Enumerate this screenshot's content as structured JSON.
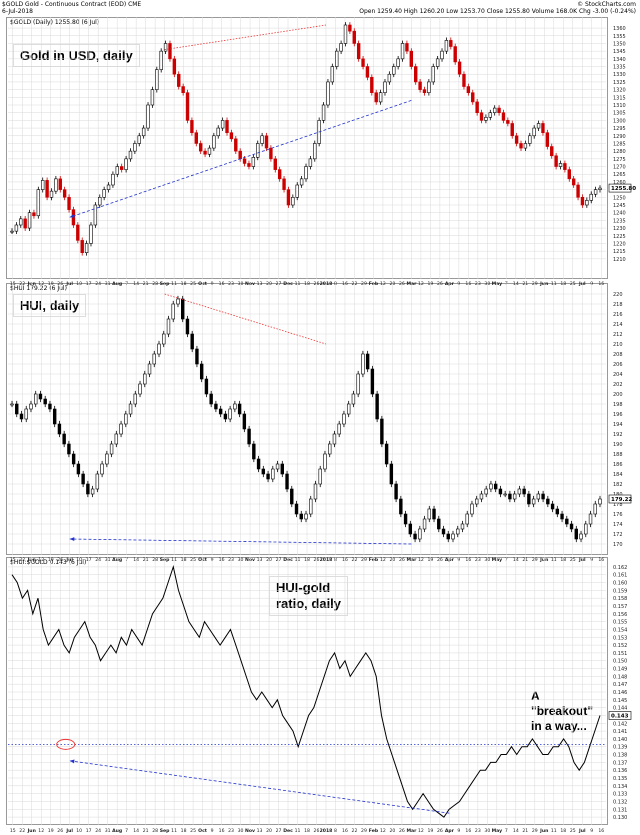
{
  "header": {
    "symbol_line": "$GOLD Gold - Continuous Contract (EOD) CME",
    "date_line": "6-Jul-2018",
    "right_line1": "© StockCharts.com",
    "right_line2": "Open 1259.40  High 1260.20  Low 1253.70  Close 1255.80  Volume 168.0K  Chg -3.00 (-0.24%)"
  },
  "panels": {
    "gold": {
      "legend": "$GOLD (Daily) 1255.80 (6 Jul)",
      "caption": "Gold in USD, daily",
      "last_label": "1255.80"
    },
    "hui": {
      "legend": "$HUI 179.22 (6 Jul)",
      "caption": "HUI, daily",
      "last_label": "179.22"
    },
    "ratio": {
      "legend": "$HUI:$GOLD 0.143 (6 Jul)",
      "caption": "HUI-gold\nratio, daily",
      "caption_line1": "HUI-gold",
      "caption_line2": "ratio, daily",
      "annotation_line1": "A \"breakout\"",
      "annotation_line2": "in a way...",
      "last_label": "0.143"
    }
  },
  "x_axis": [
    "15",
    "22",
    "Jun",
    "12",
    "19",
    "26",
    "Jul",
    "10",
    "17",
    "24",
    "31",
    "Aug",
    "7",
    "14",
    "21",
    "28",
    "Sep",
    "11",
    "18",
    "25",
    "Oct",
    "9",
    "16",
    "23",
    "30",
    "Nov",
    "13",
    "20",
    "27",
    "Dec",
    "11",
    "18",
    "26",
    "2018",
    "8",
    "16",
    "22",
    "29",
    "Feb",
    "12",
    "20",
    "26",
    "Mar",
    "12",
    "19",
    "26",
    "Apr",
    "9",
    "16",
    "23",
    "30",
    "May",
    "7",
    "14",
    "21",
    "29",
    "Jun",
    "11",
    "18",
    "25",
    "Jul",
    "9",
    "16"
  ],
  "colors": {
    "up": "#000000",
    "down": "#cc0000",
    "red_dotted": "#ee3333",
    "blue_dashed": "#2233cc",
    "grid": "#d9d9d9"
  },
  "chart_data": [
    {
      "type": "candlestick",
      "name": "Gold in USD, daily",
      "ylim": [
        1206,
        1362
      ],
      "yticks": [
        1210,
        1215,
        1220,
        1225,
        1230,
        1235,
        1240,
        1245,
        1250,
        1255,
        1260,
        1265,
        1270,
        1275,
        1280,
        1285,
        1290,
        1295,
        1300,
        1305,
        1310,
        1315,
        1320,
        1325,
        1330,
        1335,
        1340,
        1345,
        1350,
        1355,
        1360
      ],
      "closes": [
        1228,
        1232,
        1236,
        1230,
        1240,
        1238,
        1255,
        1261,
        1250,
        1254,
        1262,
        1255,
        1250,
        1242,
        1232,
        1222,
        1214,
        1220,
        1232,
        1245,
        1250,
        1255,
        1258,
        1265,
        1270,
        1268,
        1275,
        1280,
        1285,
        1290,
        1295,
        1310,
        1320,
        1333,
        1345,
        1350,
        1340,
        1330,
        1322,
        1318,
        1300,
        1292,
        1285,
        1280,
        1278,
        1282,
        1290,
        1295,
        1300,
        1292,
        1288,
        1280,
        1275,
        1272,
        1270,
        1276,
        1285,
        1290,
        1282,
        1275,
        1268,
        1262,
        1255,
        1245,
        1250,
        1258,
        1262,
        1270,
        1275,
        1285,
        1300,
        1310,
        1325,
        1335,
        1345,
        1350,
        1362,
        1358,
        1350,
        1340,
        1335,
        1328,
        1318,
        1312,
        1318,
        1325,
        1330,
        1335,
        1340,
        1350,
        1345,
        1335,
        1325,
        1320,
        1318,
        1325,
        1335,
        1340,
        1345,
        1352,
        1348,
        1338,
        1330,
        1322,
        1318,
        1312,
        1305,
        1300,
        1302,
        1305,
        1308,
        1305,
        1300,
        1298,
        1290,
        1285,
        1282,
        1285,
        1290,
        1295,
        1298,
        1292,
        1283,
        1277,
        1270,
        1272,
        1268,
        1262,
        1258,
        1250,
        1245,
        1248,
        1252,
        1255,
        1256
      ],
      "ref_lines": [
        {
          "style": "red-dotted",
          "from": [
            "Sep",
            1346
          ],
          "to": [
            "2018",
            1362
          ]
        },
        {
          "style": "blue-dashed-arrow",
          "from": [
            "Mar",
            1313
          ],
          "to": [
            "Jul",
            1237
          ]
        }
      ]
    },
    {
      "type": "candlestick",
      "name": "HUI, daily",
      "ylim": [
        169,
        221
      ],
      "yticks": [
        170,
        172,
        174,
        176,
        178,
        180,
        182,
        184,
        186,
        188,
        190,
        192,
        194,
        196,
        198,
        200,
        202,
        204,
        206,
        208,
        210,
        212,
        214,
        216,
        218,
        220
      ],
      "closes": [
        198,
        196,
        195,
        197,
        198,
        200,
        199,
        198,
        197,
        194,
        192,
        190,
        188,
        186,
        184,
        182,
        180,
        181,
        184,
        186,
        188,
        190,
        192,
        194,
        196,
        198,
        200,
        202,
        204,
        206,
        208,
        210,
        212,
        215,
        218,
        219,
        215,
        212,
        209,
        206,
        203,
        200,
        198,
        197,
        196,
        195,
        197,
        198,
        196,
        193,
        190,
        187,
        185,
        184,
        183,
        185,
        186,
        184,
        181,
        178,
        176,
        175,
        176,
        179,
        182,
        185,
        188,
        190,
        192,
        194,
        196,
        198,
        200,
        204,
        208,
        205,
        200,
        195,
        190,
        186,
        182,
        179,
        176,
        174,
        172,
        171,
        173,
        175,
        177,
        175,
        173,
        172,
        171,
        172,
        173,
        174,
        176,
        178,
        179,
        180,
        181,
        182,
        181,
        180,
        180,
        179,
        180,
        181,
        180,
        178,
        179,
        180,
        179,
        178,
        177,
        176,
        175,
        174,
        173,
        171,
        172,
        174,
        176,
        178,
        179
      ],
      "ref_lines": [
        {
          "style": "red-dotted",
          "from": [
            "Sep",
            220
          ],
          "to": [
            "2018",
            210
          ]
        },
        {
          "style": "blue-dashed-arrow",
          "from": [
            "Mar",
            170
          ],
          "to": [
            "Jul",
            171
          ]
        }
      ]
    },
    {
      "type": "line",
      "name": "HUI-gold ratio, daily",
      "ylim": [
        0.1295,
        0.1625
      ],
      "yticks": [
        0.13,
        0.131,
        0.132,
        0.133,
        0.134,
        0.135,
        0.136,
        0.137,
        0.138,
        0.139,
        0.14,
        0.141,
        0.142,
        0.143,
        0.144,
        0.145,
        0.146,
        0.147,
        0.148,
        0.149,
        0.15,
        0.151,
        0.152,
        0.153,
        0.154,
        0.155,
        0.156,
        0.157,
        0.158,
        0.159,
        0.16,
        0.161,
        0.162
      ],
      "values": [
        0.161,
        0.16,
        0.158,
        0.159,
        0.156,
        0.158,
        0.154,
        0.152,
        0.153,
        0.154,
        0.152,
        0.151,
        0.153,
        0.154,
        0.155,
        0.153,
        0.152,
        0.15,
        0.151,
        0.152,
        0.151,
        0.153,
        0.152,
        0.154,
        0.153,
        0.152,
        0.154,
        0.156,
        0.157,
        0.158,
        0.16,
        0.162,
        0.159,
        0.157,
        0.155,
        0.154,
        0.153,
        0.155,
        0.154,
        0.153,
        0.152,
        0.153,
        0.154,
        0.152,
        0.15,
        0.148,
        0.146,
        0.145,
        0.146,
        0.145,
        0.144,
        0.145,
        0.143,
        0.142,
        0.141,
        0.139,
        0.141,
        0.143,
        0.144,
        0.146,
        0.148,
        0.15,
        0.151,
        0.149,
        0.15,
        0.148,
        0.149,
        0.15,
        0.151,
        0.15,
        0.148,
        0.143,
        0.14,
        0.138,
        0.136,
        0.134,
        0.132,
        0.131,
        0.132,
        0.133,
        0.132,
        0.131,
        0.1305,
        0.13,
        0.131,
        0.1315,
        0.132,
        0.133,
        0.134,
        0.135,
        0.136,
        0.136,
        0.137,
        0.137,
        0.138,
        0.138,
        0.139,
        0.138,
        0.139,
        0.139,
        0.14,
        0.139,
        0.138,
        0.138,
        0.139,
        0.139,
        0.14,
        0.139,
        0.137,
        0.136,
        0.137,
        0.139,
        0.141,
        0.143
      ],
      "ref_lines": [
        {
          "style": "blue-dotted-horizontal",
          "y": 0.1393
        },
        {
          "style": "blue-dashed-arrow",
          "from": [
            "Apr",
            0.1305
          ],
          "to": [
            "Jul",
            0.1372
          ]
        },
        {
          "style": "red-ellipse",
          "at": [
            "Jul",
            0.1393
          ]
        }
      ]
    }
  ]
}
